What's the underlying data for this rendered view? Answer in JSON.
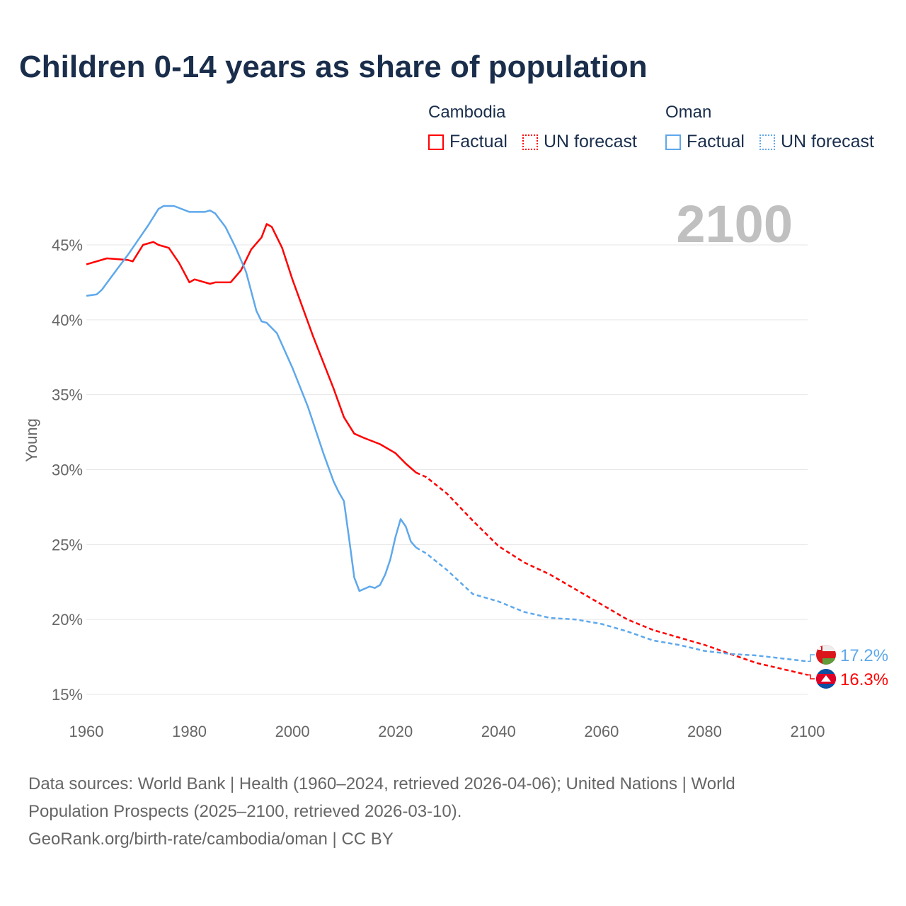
{
  "title": "Children 0-14 years as share of population",
  "legend": {
    "groups": [
      {
        "name": "Cambodia",
        "color": "#ff0000",
        "factual": "Factual",
        "forecast": "UN forecast"
      },
      {
        "name": "Oman",
        "color": "#5ea8ec",
        "factual": "Factual",
        "forecast": "UN forecast"
      }
    ]
  },
  "year_label": "2100",
  "footer": {
    "line1": "Data sources: World Bank | Health (1960–2024, retrieved 2026-04-06); United Nations | World",
    "line2": "Population Prospects (2025–2100, retrieved 2026-03-10).",
    "line3": "GeoRank.org/birth-rate/cambodia/oman | CC BY"
  },
  "chart_data": {
    "type": "line",
    "title": "Children 0-14 years as share of population",
    "xlabel": "",
    "ylabel": "Young",
    "xlim": [
      1960,
      2100
    ],
    "ylim": [
      15,
      48
    ],
    "x_ticks": [
      1960,
      1980,
      2000,
      2020,
      2040,
      2060,
      2080,
      2100
    ],
    "y_ticks": [
      15,
      20,
      25,
      30,
      35,
      40,
      45
    ],
    "y_tick_labels": [
      "15%",
      "20%",
      "25%",
      "30%",
      "35%",
      "40%",
      "45%"
    ],
    "grid": true,
    "forecast_start": 2024,
    "series": [
      {
        "name": "Cambodia",
        "color": "#ff0000",
        "end_label": "16.3%",
        "x": [
          1960,
          1964,
          1968,
          1969,
          1971,
          1973,
          1974,
          1976,
          1978,
          1980,
          1981,
          1984,
          1985,
          1988,
          1990,
          1992,
          1994,
          1995,
          1996,
          1998,
          2000,
          2004,
          2008,
          2010,
          2012,
          2014,
          2017,
          2020,
          2022,
          2024,
          2026,
          2030,
          2035,
          2040,
          2045,
          2050,
          2055,
          2060,
          2065,
          2070,
          2075,
          2080,
          2085,
          2090,
          2095,
          2100
        ],
        "y": [
          43.7,
          44.1,
          44.0,
          43.9,
          45.0,
          45.2,
          45.0,
          44.8,
          43.8,
          42.5,
          42.7,
          42.4,
          42.5,
          42.5,
          43.3,
          44.7,
          45.5,
          46.4,
          46.2,
          44.8,
          42.7,
          38.9,
          35.4,
          33.5,
          32.4,
          32.1,
          31.7,
          31.1,
          30.4,
          29.8,
          29.5,
          28.4,
          26.6,
          24.9,
          23.8,
          23.0,
          22.0,
          21.0,
          20.0,
          19.3,
          18.8,
          18.3,
          17.7,
          17.1,
          16.7,
          16.3
        ]
      },
      {
        "name": "Oman",
        "color": "#5ea8ec",
        "end_label": "17.2%",
        "x": [
          1960,
          1962,
          1963,
          1966,
          1968,
          1970,
          1972,
          1974,
          1975,
          1977,
          1980,
          1983,
          1984,
          1985,
          1987,
          1989,
          1991,
          1993,
          1994,
          1995,
          1997,
          2000,
          2003,
          2006,
          2008,
          2009,
          2010,
          2011,
          2012,
          2013,
          2015,
          2016,
          2017,
          2018,
          2019,
          2020,
          2021,
          2022,
          2023,
          2024,
          2026,
          2030,
          2035,
          2040,
          2045,
          2050,
          2055,
          2060,
          2065,
          2070,
          2075,
          2080,
          2085,
          2090,
          2095,
          2100
        ],
        "y": [
          41.6,
          41.7,
          42.0,
          43.4,
          44.3,
          45.3,
          46.3,
          47.4,
          47.6,
          47.6,
          47.2,
          47.2,
          47.3,
          47.1,
          46.2,
          44.8,
          43.2,
          40.6,
          39.9,
          39.8,
          39.1,
          36.8,
          34.2,
          31.1,
          29.2,
          28.5,
          27.9,
          25.4,
          22.8,
          21.9,
          22.2,
          22.1,
          22.3,
          23.0,
          24.0,
          25.5,
          26.7,
          26.2,
          25.2,
          24.8,
          24.4,
          23.3,
          21.7,
          21.2,
          20.5,
          20.1,
          20.0,
          19.7,
          19.2,
          18.6,
          18.3,
          17.9,
          17.7,
          17.6,
          17.4,
          17.2
        ]
      }
    ]
  }
}
